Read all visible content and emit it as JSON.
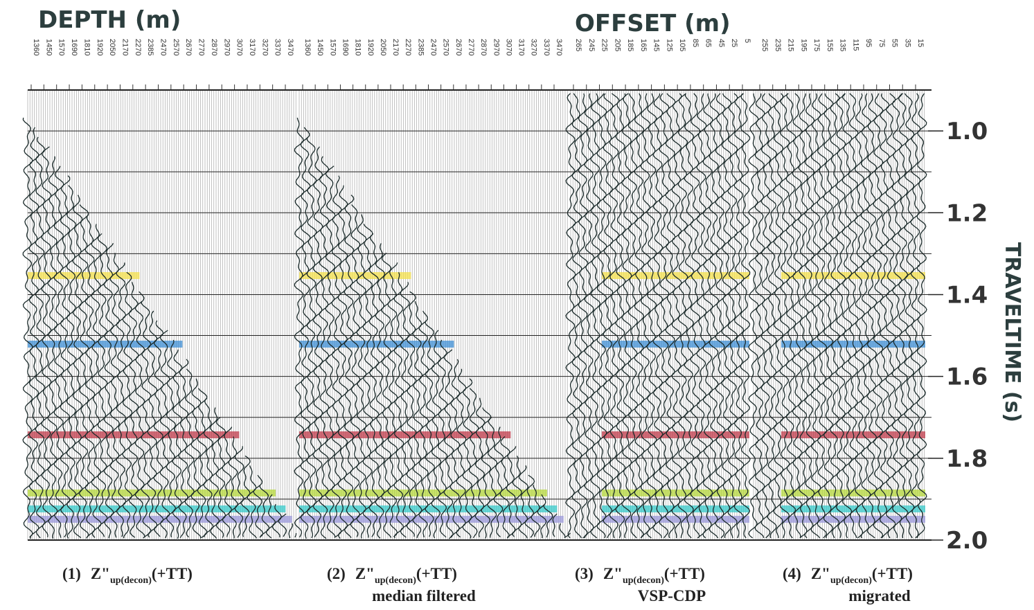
{
  "headers": {
    "depth": "DEPTH (m)",
    "offset": "OFFSET (m)"
  },
  "panels": [
    {
      "tick_labels": [
        "1360",
        "1450",
        "1570",
        "1690",
        "1810",
        "1920",
        "2050",
        "2170",
        "2270",
        "2385",
        "2470",
        "2570",
        "2670",
        "2770",
        "2870",
        "2970",
        "3070",
        "3170",
        "3270",
        "3370",
        "3470"
      ],
      "caption": {
        "number": "(1)",
        "main": "Z\"",
        "sub": "up(decon)",
        "suffix": "(+TT)"
      }
    },
    {
      "tick_labels": [
        "1360",
        "1450",
        "1570",
        "1690",
        "1810",
        "1920",
        "2050",
        "2170",
        "2270",
        "2385",
        "2470",
        "2570",
        "2670",
        "2770",
        "2870",
        "2970",
        "3070",
        "3170",
        "3270",
        "3370",
        "3470"
      ],
      "caption": {
        "number": "(2)",
        "main": "Z\"",
        "sub": "up(decon)",
        "suffix": "(+TT)",
        "note": "median filtered"
      }
    },
    {
      "tick_labels": [
        "265",
        "245",
        "225",
        "205",
        "185",
        "165",
        "145",
        "125",
        "105",
        "85",
        "65",
        "45",
        "25",
        "5"
      ],
      "caption": {
        "number": "(3)",
        "main": "Z\"",
        "sub": "up(decon)",
        "suffix": "(+TT)",
        "note": "VSP-CDP"
      }
    },
    {
      "tick_labels": [
        "255",
        "235",
        "215",
        "195",
        "175",
        "155",
        "135",
        "115",
        "95",
        "75",
        "55",
        "35",
        "15"
      ],
      "caption": {
        "number": "(4)",
        "main": "Z\"",
        "sub": "up(decon)",
        "suffix": "(+TT)",
        "note": "migrated"
      }
    }
  ],
  "time_axis": {
    "label": "TRAVELTIME (s)",
    "ticks": [
      "1.0",
      "1.2",
      "1.4",
      "1.6",
      "1.8",
      "2.0"
    ]
  }
}
